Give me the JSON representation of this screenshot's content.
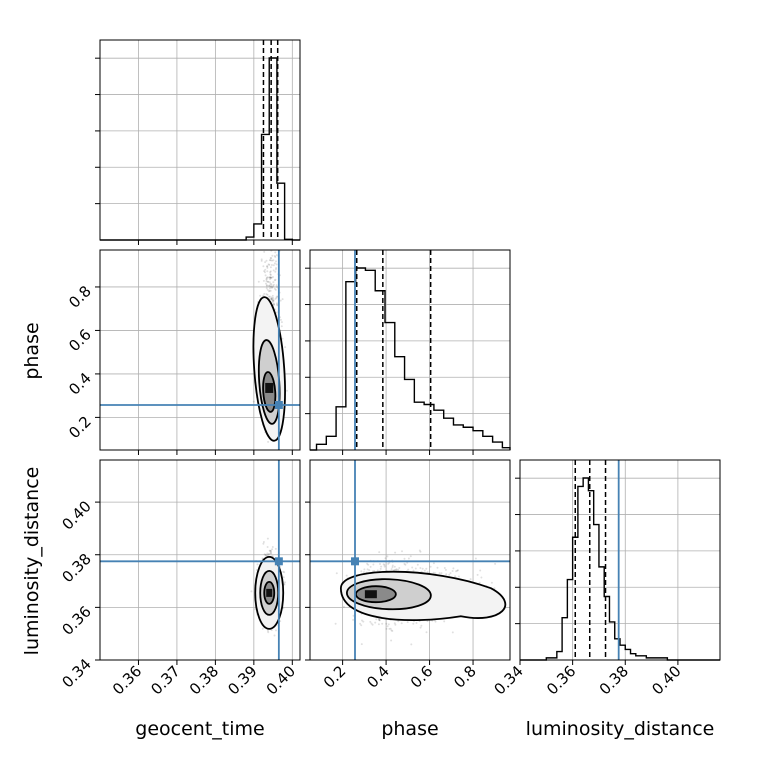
{
  "chart_data": {
    "type": "corner",
    "parameters": [
      "geocent_time",
      "phase",
      "luminosity_distance"
    ],
    "axis_labels": {
      "geocent_time": "geocent_time",
      "phase": "phase",
      "luminosity_distance": "luminosity_distance"
    },
    "ranges": {
      "geocent_time": [
        0.35,
        0.402
      ],
      "phase": [
        0.05,
        0.97
      ],
      "luminosity_distance": [
        0.34,
        0.416
      ]
    },
    "ticks": {
      "geocent_time": [
        {
          "value": 0.36,
          "label": "0.36"
        },
        {
          "value": 0.37,
          "label": "0.37"
        },
        {
          "value": 0.38,
          "label": "0.38"
        },
        {
          "value": 0.39,
          "label": "0.39"
        },
        {
          "value": 0.4,
          "label": "0.40"
        }
      ],
      "phase": [
        {
          "value": 0.2,
          "label": "0.2"
        },
        {
          "value": 0.4,
          "label": "0.4"
        },
        {
          "value": 0.6,
          "label": "0.6"
        },
        {
          "value": 0.8,
          "label": "0.8"
        }
      ],
      "luminosity_distance": [
        {
          "value": 0.34,
          "label": "0.34"
        },
        {
          "value": 0.36,
          "label": "0.36"
        },
        {
          "value": 0.38,
          "label": "0.38"
        },
        {
          "value": 0.4,
          "label": "0.40"
        }
      ]
    },
    "truths": {
      "geocent_time": 0.3965,
      "phase": 0.257,
      "luminosity_distance": 0.3775
    },
    "quantiles": {
      "geocent_time": [
        0.3925,
        0.3945,
        0.3962
      ],
      "phase": [
        0.265,
        0.385,
        0.605
      ],
      "luminosity_distance": [
        0.361,
        0.3665,
        0.3725
      ]
    },
    "histograms": {
      "geocent_time": {
        "edges": [
          0.388,
          0.39,
          0.392,
          0.394,
          0.396,
          0.398,
          0.4
        ],
        "counts": [
          4,
          22,
          145,
          250,
          78,
          1
        ]
      },
      "phase": {
        "edges": [
          0.08,
          0.125,
          0.17,
          0.215,
          0.26,
          0.305,
          0.35,
          0.395,
          0.44,
          0.485,
          0.53,
          0.575,
          0.62,
          0.665,
          0.71,
          0.755,
          0.8,
          0.845,
          0.89,
          0.935,
          0.97
        ],
        "counts": [
          5,
          12,
          38,
          148,
          160,
          158,
          140,
          112,
          82,
          62,
          42,
          40,
          35,
          28,
          22,
          20,
          17,
          12,
          7,
          2
        ]
      },
      "luminosity_distance": {
        "edges": [
          0.35,
          0.354,
          0.356,
          0.358,
          0.36,
          0.362,
          0.364,
          0.366,
          0.368,
          0.37,
          0.372,
          0.374,
          0.376,
          0.378,
          0.38,
          0.382,
          0.384,
          0.386,
          0.388,
          0.39,
          0.396
        ],
        "counts": [
          1,
          4,
          20,
          38,
          58,
          82,
          86,
          80,
          64,
          44,
          30,
          18,
          10,
          7,
          5,
          3,
          2,
          2,
          1,
          1
        ]
      }
    },
    "contour_peaks": {
      "phase_vs_geocent_time": {
        "x": 0.394,
        "y": 0.34
      },
      "luminosity_distance_vs_geocent_time": {
        "x": 0.394,
        "y": 0.3655
      },
      "luminosity_distance_vs_phase": {
        "x": 0.33,
        "y": 0.365
      }
    },
    "grid": true,
    "colors": {
      "truth": "#4682b4",
      "hist": "#000000",
      "grid": "#b0b0b0",
      "scatter": "#000000"
    }
  }
}
